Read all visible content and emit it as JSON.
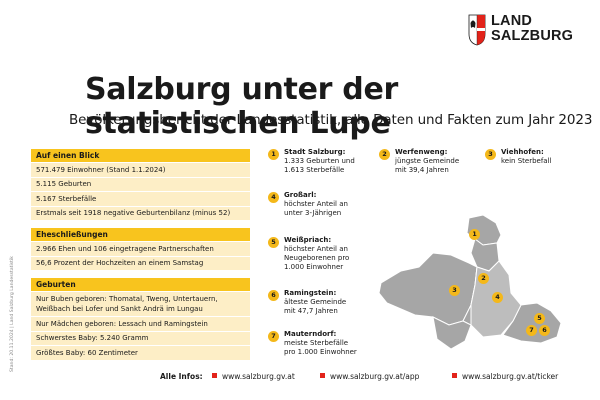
{
  "logo": {
    "line1": "LAND",
    "line2": "SALZBURG",
    "colors": {
      "red": "#e2231a",
      "gold": "#f4b81a"
    }
  },
  "title": "Salzburg unter der statistischen Lupe",
  "subtitle": "Bevölkerungsbericht der Landesstatistik, alle Daten und Fakten zum Jahr 2023",
  "side_note": "Stand: 20.11.2024 | Land Salzburg Landesstatistik",
  "facts": {
    "overview": {
      "heading": "Auf einen Blick",
      "rows": [
        "571.479 Einwohner (Stand 1.1.2024)",
        "5.115 Geburten",
        "5.167 Sterbefälle",
        "Erstmals seit 1918 negative Geburtenbilanz (minus 52)"
      ]
    },
    "marriages": {
      "heading": "Eheschließungen",
      "rows": [
        "2.966 Ehen und 106 eingetragene Partnerschaften",
        "56,6 Prozent der Hochzeiten an einem Samstag"
      ]
    },
    "births": {
      "heading": "Geburten",
      "rows": [
        "Nur Buben geboren: Thomatal, Tweng, Untertauern, Weißbach bei Lofer und Sankt Andrä im Lungau",
        "Nur Mädchen geboren: Lessach und Ramingstein",
        "Schwerstes Baby: 5.240 Gramm",
        "Größtes Baby: 60 Zentimeter"
      ]
    }
  },
  "places": [
    {
      "num": "1",
      "name": "Stadt Salzburg:",
      "lines": [
        "1.333 Geburten und",
        "1.613 Sterbefälle"
      ]
    },
    {
      "num": "2",
      "name": "Werfenweng:",
      "lines": [
        "jüngste Gemeinde",
        "mit 39,4 Jahren"
      ]
    },
    {
      "num": "3",
      "name": "Viehhofen:",
      "lines": [
        "kein Sterbefall"
      ]
    },
    {
      "num": "4",
      "name": "Großarl:",
      "lines": [
        "höchster Anteil an",
        "unter 3-Jährigen"
      ]
    },
    {
      "num": "5",
      "name": "Weißpriach:",
      "lines": [
        "höchster Anteil an",
        "Neugeborenen pro",
        "1.000 Einwohner"
      ]
    },
    {
      "num": "6",
      "name": "Ramingstein:",
      "lines": [
        "älteste Gemeinde",
        "mit 47,7 Jahren"
      ]
    },
    {
      "num": "7",
      "name": "Mauterndorf:",
      "lines": [
        "meiste Sterbefälle",
        "pro 1.000 Einwohner"
      ]
    }
  ],
  "footer": {
    "label": "Alle Infos:",
    "links": [
      "www.salzburg.gv.at",
      "www.salzburg.gv.at/app",
      "www.salzburg.gv.at/ticker"
    ]
  }
}
